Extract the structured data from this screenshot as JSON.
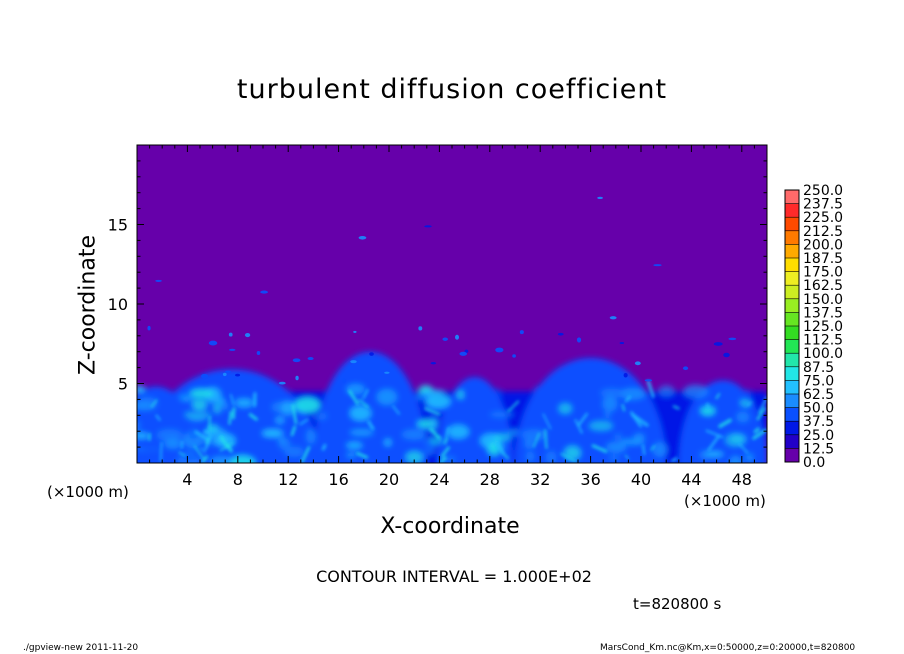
{
  "chart_data": {
    "type": "heatmap",
    "title": "turbulent diffusion coefficient",
    "xlabel": "X-coordinate",
    "ylabel": "Z-coordinate",
    "x_unit": "(×1000 m)",
    "xlim": [
      0,
      50
    ],
    "ylim": [
      0,
      20
    ],
    "x_ticks": [
      4,
      8,
      12,
      16,
      20,
      24,
      28,
      32,
      36,
      40,
      44,
      48
    ],
    "y_ticks": [
      5,
      10,
      15
    ],
    "colorbar": {
      "levels": [
        "0.0",
        "12.5",
        "25.0",
        "37.5",
        "50.0",
        "62.5",
        "75.0",
        "87.5",
        "100.0",
        "112.5",
        "125.0",
        "137.5",
        "150.0",
        "162.5",
        "175.0",
        "187.5",
        "200.0",
        "212.5",
        "225.0",
        "237.5",
        "250.0"
      ],
      "colors": [
        "#6600aa",
        "#2200c8",
        "#0018e6",
        "#0a50ff",
        "#1a8cff",
        "#22c0ff",
        "#22e6e6",
        "#22e6aa",
        "#22e655",
        "#33dd22",
        "#66e622",
        "#99ee22",
        "#ccee22",
        "#eeee22",
        "#ffdd00",
        "#ffaa00",
        "#ff7a00",
        "#ff4a00",
        "#ff2a2a",
        "#ff6a6a"
      ]
    },
    "background_level": "0.0",
    "turbulent_layer_top_approx": 5,
    "contour_interval": "CONTOUR INTERVAL = 1.000E+02",
    "time": "t=820800 s"
  },
  "footer": {
    "left": "./gpview-new   2011-11-20",
    "right": "MarsCond_Km.nc@Km,x=0:50000,z=0:20000,t=820800"
  }
}
